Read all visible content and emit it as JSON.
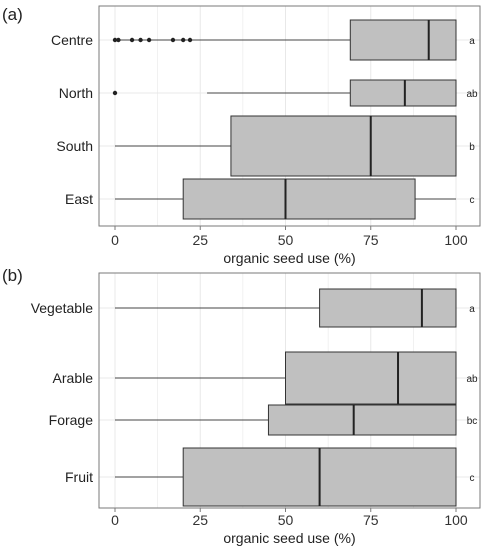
{
  "chart_data": [
    {
      "type": "boxplot",
      "panel_label": "(a)",
      "orientation": "horizontal",
      "xlabel": "organic seed use (%)",
      "xlim": [
        0,
        100
      ],
      "xticks": [
        "0",
        "25",
        "50",
        "75",
        "100"
      ],
      "grid": true,
      "series": [
        {
          "category": "Centre",
          "min": 0,
          "q1": 69,
          "median": 92,
          "q3": 100,
          "max": 100,
          "outliers": [
            0,
            1,
            5,
            7.5,
            10,
            17,
            20,
            22
          ],
          "letter": "a"
        },
        {
          "category": "North",
          "min": 27,
          "q1": 69,
          "median": 85,
          "q3": 100,
          "max": 100,
          "outliers": [
            0
          ],
          "letter": "ab"
        },
        {
          "category": "South",
          "min": 0,
          "q1": 34,
          "median": 75,
          "q3": 100,
          "max": 100,
          "outliers": [],
          "letter": "b"
        },
        {
          "category": "East",
          "min": 0,
          "q1": 20,
          "median": 50,
          "q3": 88,
          "max": 100,
          "outliers": [],
          "letter": "c"
        }
      ]
    },
    {
      "type": "boxplot",
      "panel_label": "(b)",
      "orientation": "horizontal",
      "xlabel": "organic seed use (%)",
      "xlim": [
        0,
        100
      ],
      "xticks": [
        "0",
        "25",
        "50",
        "75",
        "100"
      ],
      "grid": true,
      "series": [
        {
          "category": "Vegetable",
          "min": 0,
          "q1": 60,
          "median": 90,
          "q3": 100,
          "max": 100,
          "outliers": [],
          "letter": "a"
        },
        {
          "category": "Arable",
          "min": 0,
          "q1": 50,
          "median": 83,
          "q3": 100,
          "max": 100,
          "outliers": [],
          "letter": "ab"
        },
        {
          "category": "Forage",
          "min": 0,
          "q1": 45,
          "median": 70,
          "q3": 100,
          "max": 100,
          "outliers": [],
          "letter": "bc"
        },
        {
          "category": "Fruit",
          "min": 0,
          "q1": 20,
          "median": 60,
          "q3": 100,
          "max": 100,
          "outliers": [],
          "letter": "c"
        }
      ]
    }
  ],
  "colors": {
    "box_fill": "#c0c0c0",
    "box_stroke": "#333333",
    "grid": "#e8e8e8",
    "frame": "#7a7a7a",
    "outlier": "#222222"
  }
}
